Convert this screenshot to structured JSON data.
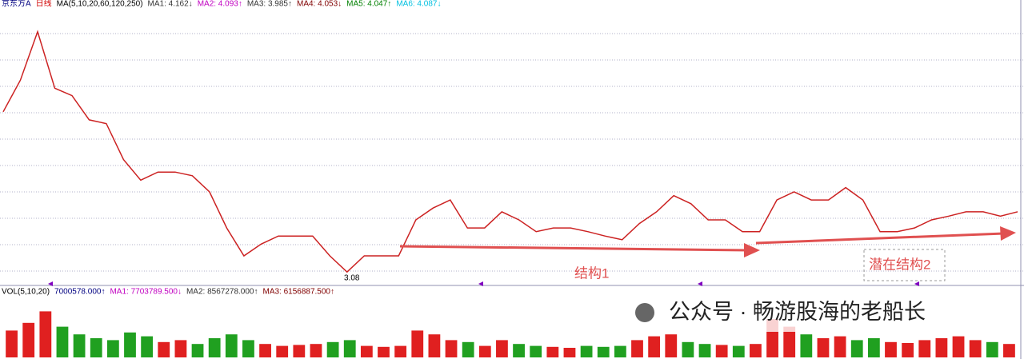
{
  "header": {
    "items": [
      {
        "text": "京东方A",
        "color": "#000080"
      },
      {
        "text": "日线",
        "color": "#d00000"
      },
      {
        "text": "MA(5,10,20,60,120,250)",
        "color": "#000000"
      },
      {
        "text": "MA1: 4.162↓",
        "color": "#333333"
      },
      {
        "text": "MA2: 4.093↑",
        "color": "#c000c0"
      },
      {
        "text": "MA3: 3.985↑",
        "color": "#333333"
      },
      {
        "text": "MA4: 4.053↓",
        "color": "#800000"
      },
      {
        "text": "MA5: 4.047↑",
        "color": "#008000"
      },
      {
        "text": "MA6: 4.087↓",
        "color": "#00c0e0"
      }
    ]
  },
  "volume_header": {
    "items": [
      {
        "text": "VOL(5,10,20)",
        "color": "#000000"
      },
      {
        "text": "7000578.000↑",
        "color": "#000080"
      },
      {
        "text": "MA1: 7703789.500↓",
        "color": "#c000c0"
      },
      {
        "text": "MA2: 8567278.000↑",
        "color": "#333333"
      },
      {
        "text": "MA3: 6156887.500↑",
        "color": "#800000"
      }
    ]
  },
  "watermark": {
    "text": "公众号 · 畅游股海的老船长"
  },
  "chart_data": [
    {
      "type": "line",
      "annotations": [
        "3.08",
        "结构1",
        "潜在结构2"
      ],
      "ylim": [
        2.98,
        7.55
      ],
      "series": [
        {
          "name": "京东方A",
          "color": "#cc2222",
          "values": [
            5.75,
            6.26,
            7.04,
            6.13,
            6.01,
            5.62,
            5.56,
            4.98,
            4.65,
            4.78,
            4.78,
            4.72,
            4.46,
            3.88,
            3.43,
            3.62,
            3.75,
            3.75,
            3.75,
            3.43,
            3.17,
            3.43,
            3.43,
            3.43,
            4.01,
            4.2,
            4.33,
            3.88,
            3.88,
            4.14,
            4.01,
            3.82,
            3.88,
            3.88,
            3.82,
            3.75,
            3.69,
            3.95,
            4.14,
            4.4,
            4.27,
            4.01,
            4.01,
            3.82,
            3.82,
            4.33,
            4.46,
            4.33,
            4.33,
            4.53,
            4.33,
            3.82,
            3.82,
            3.88,
            4.01,
            4.07,
            4.14,
            4.14,
            4.07,
            4.14
          ]
        }
      ]
    },
    {
      "type": "bar",
      "ylim": [
        0,
        30000000
      ],
      "up_color": "#e02020",
      "down_color": "#20a020",
      "values": [
        14000000,
        18000000,
        24000000,
        16000000,
        12000000,
        10000000,
        9000000,
        13000000,
        11000000,
        8000000,
        9000000,
        7000000,
        10000000,
        12000000,
        9000000,
        7000000,
        6000000,
        6500000,
        7000000,
        8000000,
        9000000,
        6000000,
        5500000,
        6000000,
        14000000,
        12000000,
        9000000,
        8000000,
        6000000,
        9000000,
        7000000,
        6000000,
        5500000,
        5000000,
        6000000,
        5500000,
        6000000,
        9000000,
        11000000,
        12000000,
        8000000,
        7000000,
        6500000,
        6000000,
        7000000,
        20000000,
        16000000,
        12000000,
        10000000,
        11000000,
        9000000,
        10000000,
        8000000,
        7500000,
        9000000,
        10000000,
        11000000,
        9000000,
        8000000,
        7000000
      ]
    }
  ]
}
